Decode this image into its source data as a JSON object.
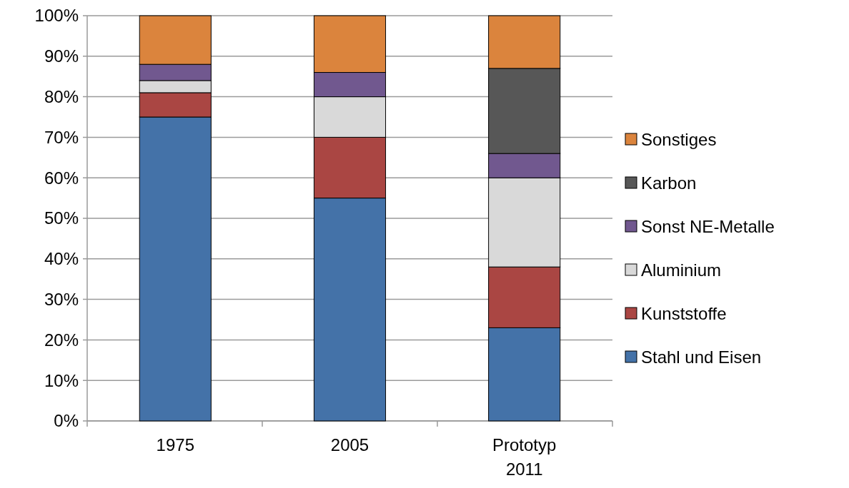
{
  "chart_data": {
    "type": "bar",
    "stacked": true,
    "categories": [
      "1975",
      "2005",
      "Prototyp\n2011"
    ],
    "series": [
      {
        "name": "Stahl und Eisen",
        "color": "#4472a8",
        "values": [
          75,
          55,
          23
        ]
      },
      {
        "name": "Kunststoffe",
        "color": "#aa4643",
        "values": [
          6,
          15,
          15
        ]
      },
      {
        "name": "Aluminium",
        "color": "#d9d9d9",
        "values": [
          3,
          10,
          22
        ]
      },
      {
        "name": "Sonst NE-Metalle",
        "color": "#71588f",
        "values": [
          4,
          6,
          6
        ]
      },
      {
        "name": "Karbon",
        "color": "#575757",
        "values": [
          0,
          0,
          21
        ]
      },
      {
        "name": "Sonstiges",
        "color": "#db843d",
        "values": [
          12,
          14,
          13
        ]
      }
    ],
    "ylim": [
      0,
      100
    ],
    "yticks": [
      {
        "value": 0,
        "label": "0%"
      },
      {
        "value": 10,
        "label": "10%"
      },
      {
        "value": 20,
        "label": "20%"
      },
      {
        "value": 30,
        "label": "30%"
      },
      {
        "value": 40,
        "label": "40%"
      },
      {
        "value": 50,
        "label": "50%"
      },
      {
        "value": 60,
        "label": "60%"
      },
      {
        "value": 70,
        "label": "70%"
      },
      {
        "value": 80,
        "label": "80%"
      },
      {
        "value": 90,
        "label": "90%"
      },
      {
        "value": 100,
        "label": "100%"
      }
    ],
    "grid": "y",
    "legend": "right"
  }
}
